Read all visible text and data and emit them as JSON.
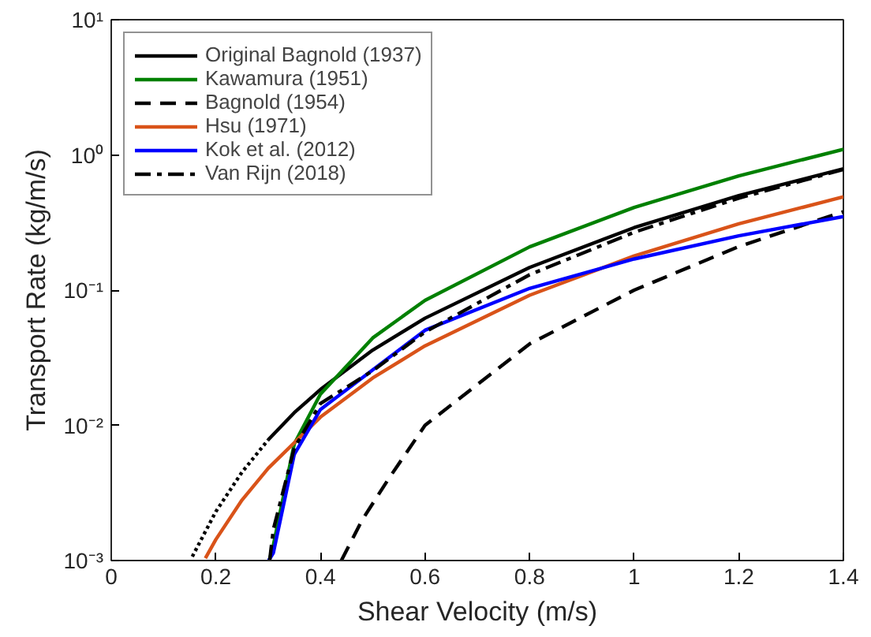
{
  "chart_data": {
    "type": "line",
    "xlabel": "Shear Velocity (m/s)",
    "ylabel": "Transport Rate (kg/m/s)",
    "log": "y",
    "xlim": [
      0,
      1.4
    ],
    "ylim": [
      0.001,
      10
    ],
    "xticks": [
      0,
      0.2,
      0.4,
      0.6,
      0.8,
      1,
      1.2,
      1.4
    ],
    "yticks": [
      {
        "value": 0.001,
        "label": "10⁻³"
      },
      {
        "value": 0.01,
        "label": "10⁻²"
      },
      {
        "value": 0.1,
        "label": "10⁻¹"
      },
      {
        "value": 1,
        "label": "10⁰"
      },
      {
        "value": 10,
        "label": "10¹"
      }
    ],
    "grid": false,
    "legend": "top left",
    "marker": "none",
    "series": [
      {
        "name": "Original Bagnold (1937)",
        "color": "#000000",
        "line_style": "solid",
        "x": [
          0.3,
          0.35,
          0.4,
          0.5,
          0.6,
          0.8,
          1.0,
          1.2,
          1.4
        ],
        "values": [
          0.0078,
          0.0124,
          0.0184,
          0.036,
          0.062,
          0.147,
          0.29,
          0.5,
          0.79
        ]
      },
      {
        "name": "Kawamura (1951)",
        "color": "#008000",
        "line_style": "solid",
        "x": [
          0.302,
          0.31,
          0.35,
          0.4,
          0.5,
          0.6,
          0.8,
          1.0,
          1.2,
          1.4
        ],
        "values": [
          0.001,
          0.0013,
          0.0073,
          0.017,
          0.0443,
          0.084,
          0.209,
          0.409,
          0.7,
          1.1
        ]
      },
      {
        "name": "Bagnold (1954)",
        "color": "#000000",
        "line_style": "dashed",
        "x": [
          0.44,
          0.48,
          0.53,
          0.6,
          0.7,
          0.8,
          1.0,
          1.2,
          1.4
        ],
        "values": [
          0.001,
          0.002,
          0.004,
          0.01,
          0.02,
          0.04,
          0.1,
          0.21,
          0.38
        ]
      },
      {
        "name": "Hsu (1971)",
        "color": "#d95319",
        "line_style": "solid",
        "x": [
          0.18,
          0.2,
          0.25,
          0.3,
          0.4,
          0.5,
          0.6,
          0.8,
          1.0,
          1.2,
          1.4
        ],
        "values": [
          0.00104,
          0.00143,
          0.0028,
          0.0048,
          0.0115,
          0.0224,
          0.0387,
          0.0917,
          0.179,
          0.309,
          0.49
        ]
      },
      {
        "name": "Kok et al. (2012)",
        "color": "#0000ff",
        "line_style": "solid",
        "x": [
          0.301,
          0.31,
          0.35,
          0.4,
          0.6,
          0.8,
          1.0,
          1.2,
          1.4
        ],
        "values": [
          0.001,
          0.00114,
          0.0061,
          0.0131,
          0.0505,
          0.103,
          0.17,
          0.252,
          0.35
        ]
      },
      {
        "name": "Van Rijn (2018)",
        "color": "#000000",
        "line_style": "dashdot",
        "x": [
          0.303,
          0.305,
          0.31,
          0.35,
          0.4,
          0.5,
          0.6,
          0.8,
          1.0,
          1.2,
          1.4
        ],
        "values": [
          0.001,
          0.00117,
          0.0017,
          0.0068,
          0.0145,
          0.0253,
          0.049,
          0.13,
          0.268,
          0.479,
          0.78
        ]
      },
      {
        "color": "#000000",
        "line_style": "dotted",
        "x": [
          0.155,
          0.2,
          0.25,
          0.3
        ],
        "values": [
          0.00107,
          0.0023,
          0.0045,
          0.0078
        ]
      }
    ]
  }
}
